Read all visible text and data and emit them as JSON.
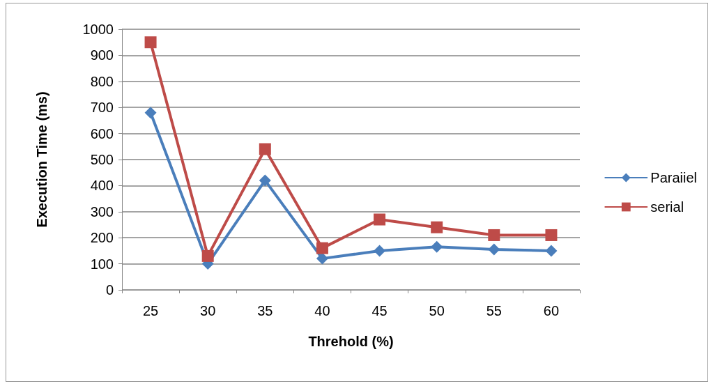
{
  "chart_data": {
    "type": "line",
    "xlabel": "Threhold (%)",
    "ylabel": "Execution Time (ms)",
    "categories": [
      "25",
      "30",
      "35",
      "40",
      "45",
      "50",
      "55",
      "60"
    ],
    "series": [
      {
        "name": "Paraiiel",
        "color": "#4a7ebb",
        "marker": "diamond",
        "values": [
          680,
          100,
          420,
          120,
          150,
          165,
          155,
          150
        ]
      },
      {
        "name": "serial",
        "color": "#be4b48",
        "marker": "square",
        "values": [
          950,
          130,
          540,
          160,
          270,
          240,
          210,
          210
        ]
      }
    ],
    "ylim": [
      0,
      1000
    ],
    "yticks": [
      0,
      100,
      200,
      300,
      400,
      500,
      600,
      700,
      800,
      900,
      1000
    ],
    "grid": "y",
    "legend": "right",
    "line_style": "solid"
  }
}
